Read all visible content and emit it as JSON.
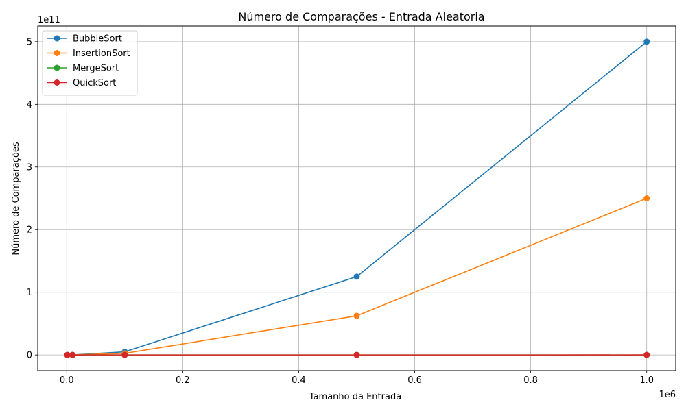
{
  "chart_data": {
    "type": "line",
    "title": "Número de Comparações - Entrada Aleatoria",
    "xlabel": "Tamanho da Entrada",
    "ylabel": "Número de Comparações",
    "x_offset_label": "1e6",
    "y_offset_label": "1e11",
    "xlim": [
      -50000,
      1050000
    ],
    "ylim": [
      -25000000000,
      525000000000
    ],
    "x_ticks": [
      0,
      200000,
      400000,
      600000,
      800000,
      1000000
    ],
    "x_tick_labels": [
      "0.0",
      "0.2",
      "0.4",
      "0.6",
      "0.8",
      "1.0"
    ],
    "y_ticks": [
      0,
      100000000000,
      200000000000,
      300000000000,
      400000000000,
      500000000000
    ],
    "y_tick_labels": [
      "0",
      "1",
      "2",
      "3",
      "4",
      "5"
    ],
    "grid": true,
    "legend_position": "top-left",
    "x": [
      1000,
      10000,
      100000,
      500000,
      1000000
    ],
    "series": [
      {
        "name": "BubbleSort",
        "color": "#1f77b4",
        "values": [
          499500,
          49995000,
          4999950000,
          124999750000,
          499999500000
        ]
      },
      {
        "name": "InsertionSort",
        "color": "#ff7f0e",
        "values": [
          250000,
          25000000,
          2500000000,
          62500000000,
          250000000000
        ]
      },
      {
        "name": "MergeSort",
        "color": "#2ca02c",
        "values": [
          8700,
          120000,
          1540000,
          8840000,
          18670000
        ]
      },
      {
        "name": "QuickSort",
        "color": "#d62728",
        "values": [
          11000,
          155000,
          2000000,
          11000000,
          24000000
        ]
      }
    ]
  }
}
